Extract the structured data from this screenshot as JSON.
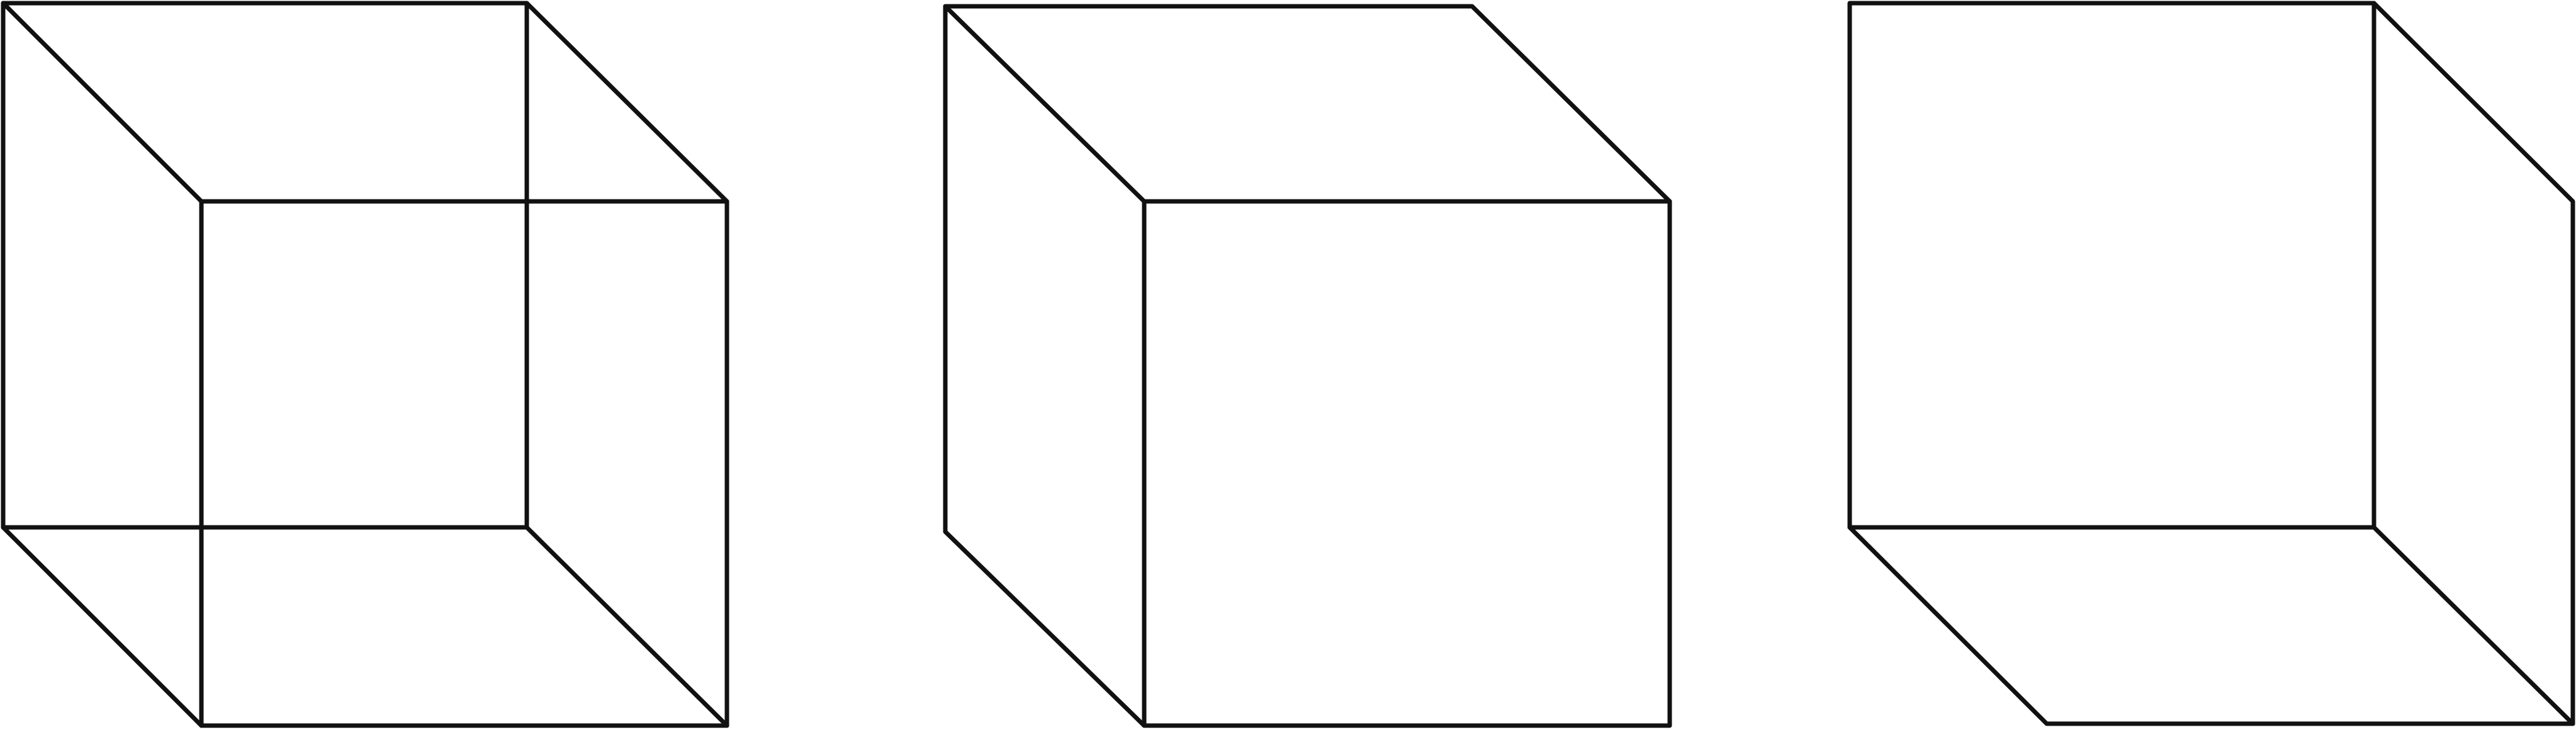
{
  "diagram": {
    "title": "",
    "line_color": "#111111",
    "background": "#ffffff",
    "figures": [
      {
        "name": "necker-cube-wireframe",
        "description_visible": false
      },
      {
        "name": "cube-viewed-from-above-left"
      },
      {
        "name": "cube-viewed-from-below-right"
      }
    ]
  }
}
